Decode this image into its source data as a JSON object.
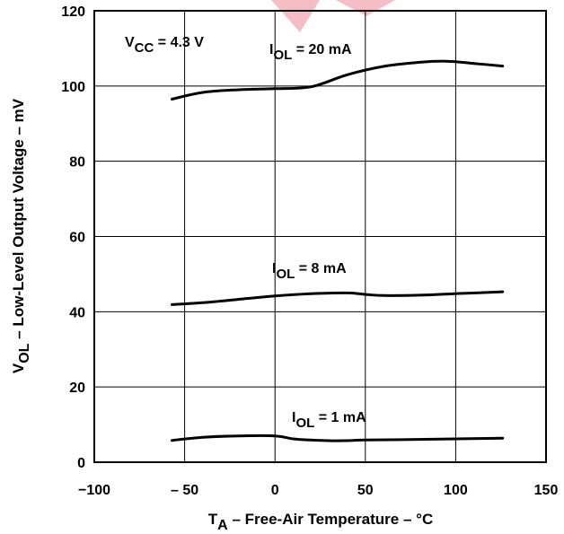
{
  "chart_data": {
    "type": "line",
    "xlabel": {
      "main": "T",
      "sub": "A",
      "rest": " – Free-Air Temperature – °C"
    },
    "ylabel": {
      "main": "V",
      "sub": "OL",
      "rest": " – Low-Level Output Voltage – mV"
    },
    "xlim": [
      -100,
      150
    ],
    "ylim": [
      0,
      120
    ],
    "xticks": [
      -100,
      -50,
      0,
      50,
      100,
      150
    ],
    "yticks": [
      0,
      20,
      40,
      60,
      80,
      100,
      120
    ],
    "xtick_labels": [
      "−100",
      "– 50",
      "0",
      "50",
      "100",
      "150"
    ],
    "ytick_labels": [
      "0",
      "20",
      "40",
      "60",
      "80",
      "100",
      "120"
    ],
    "grid": true,
    "annotations": [
      {
        "main": "V",
        "sub": "CC",
        "rest": " = 4.3 V"
      }
    ],
    "series": [
      {
        "name": {
          "main": "I",
          "sub": "OL",
          "rest": " = 20 mA"
        },
        "x": [
          -57,
          -40,
          -20,
          0,
          20,
          40,
          60,
          80,
          95,
          110,
          126
        ],
        "y": [
          96.5,
          98.3,
          99.0,
          99.3,
          99.8,
          103.0,
          105.2,
          106.3,
          106.6,
          106.0,
          105.3
        ]
      },
      {
        "name": {
          "main": "I",
          "sub": "OL",
          "rest": " = 8 mA"
        },
        "x": [
          -57,
          -40,
          -20,
          0,
          20,
          40,
          50,
          60,
          80,
          100,
          126
        ],
        "y": [
          41.9,
          42.4,
          43.3,
          44.2,
          44.8,
          45.0,
          44.6,
          44.3,
          44.4,
          44.8,
          45.3
        ]
      },
      {
        "name": {
          "main": "I",
          "sub": "OL",
          "rest": " = 1 mA"
        },
        "x": [
          -57,
          -40,
          -20,
          0,
          10,
          20,
          35,
          50,
          70,
          100,
          126
        ],
        "y": [
          5.8,
          6.6,
          7.0,
          7.0,
          6.2,
          5.9,
          5.7,
          5.9,
          6.0,
          6.2,
          6.4
        ]
      }
    ]
  }
}
